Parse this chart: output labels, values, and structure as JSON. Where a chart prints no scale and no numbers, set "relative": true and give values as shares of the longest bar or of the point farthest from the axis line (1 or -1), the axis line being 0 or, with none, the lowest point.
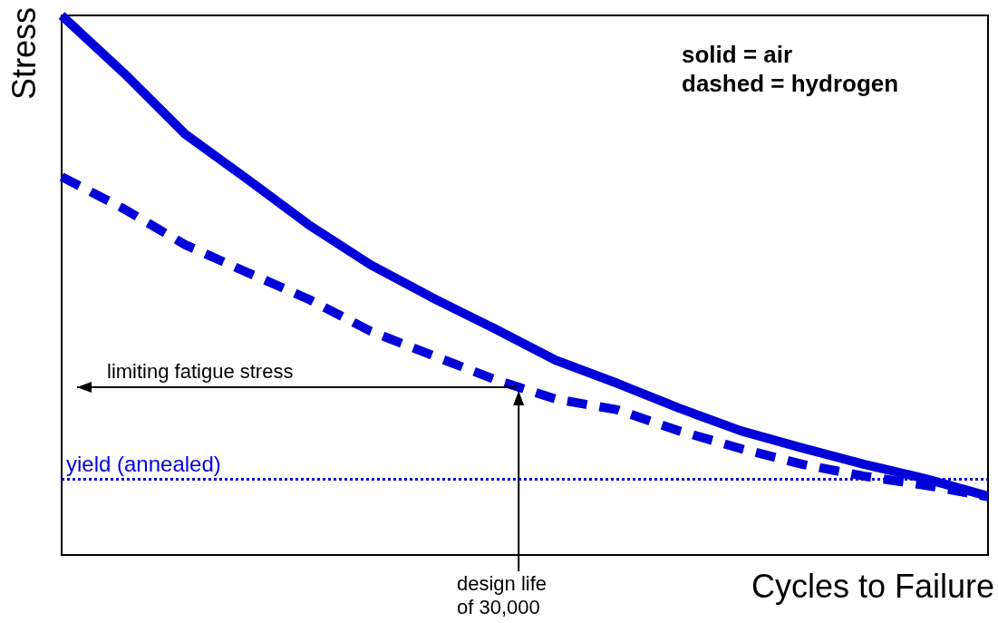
{
  "chart_data": {
    "type": "line",
    "xlabel": "Cycles to Failure",
    "ylabel": "Stress",
    "relative": true,
    "marker": "none",
    "categories": [
      null,
      null,
      null,
      null,
      null,
      null,
      null,
      null,
      null,
      null,
      null,
      null,
      null,
      null,
      null,
      null
    ],
    "series": [
      {
        "color": "#0000d8",
        "line_style": "solid",
        "values": [
          1.0,
          0.894,
          0.78,
          0.697,
          0.612,
          0.538,
          0.477,
          0.42,
          0.361,
          0.318,
          0.272,
          0.23,
          0.198,
          0.168,
          0.141,
          0.109
        ]
      },
      {
        "color": "#0000d8",
        "line_style": "dashed",
        "values": [
          0.701,
          0.642,
          0.575,
          0.524,
          0.474,
          0.415,
          0.37,
          0.326,
          0.289,
          0.269,
          0.23,
          0.197,
          0.168,
          0.146,
          0.129,
          0.108
        ]
      }
    ],
    "ref_lines": [
      {
        "axis": "y",
        "value": 0.138,
        "label": "yield (annealed)",
        "color": "#0000d8",
        "line_style": "dotted"
      }
    ],
    "annotations": [
      "solid = air\ndashed = hydrogen",
      "limiting fatigue stress",
      "design life\nof 30,000"
    ]
  }
}
